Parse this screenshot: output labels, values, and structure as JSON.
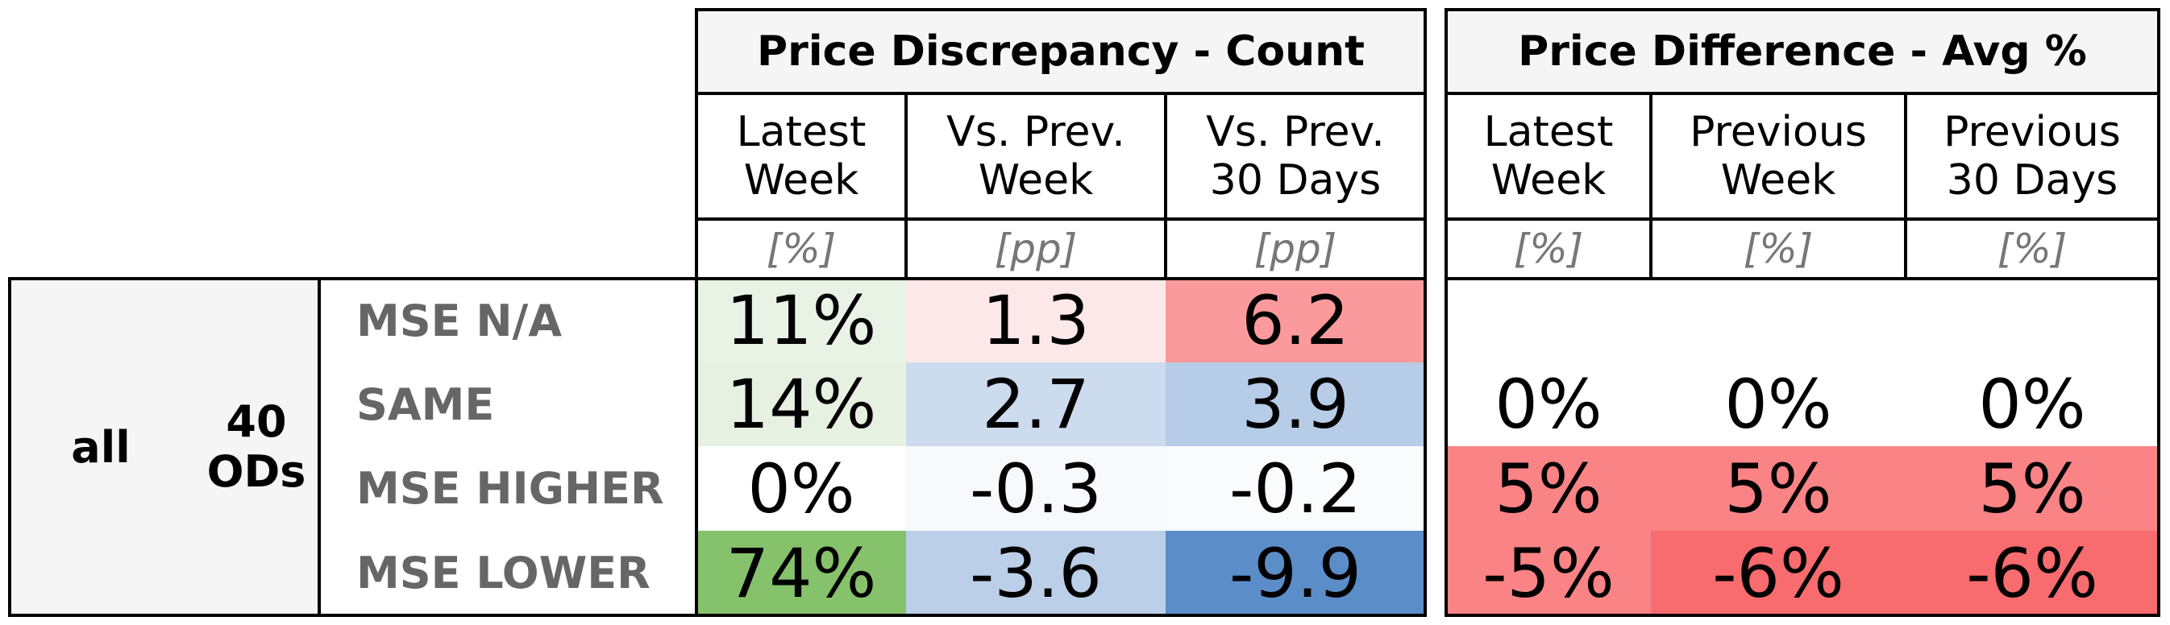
{
  "chart_data": {
    "type": "table",
    "groups": [
      {
        "title": "Price Discrepancy - Count",
        "columns": [
          {
            "label": "Latest\nWeek",
            "unit": "[%]"
          },
          {
            "label": "Vs. Prev.\nWeek",
            "unit": "[pp]"
          },
          {
            "label": "Vs. Prev.\n30 Days",
            "unit": "[pp]"
          }
        ]
      },
      {
        "title": "Price Difference - Avg %",
        "columns": [
          {
            "label": "Latest\nWeek",
            "unit": "[%]"
          },
          {
            "label": "Previous\nWeek",
            "unit": "[%]"
          },
          {
            "label": "Previous\n30 Days",
            "unit": "[%]"
          }
        ]
      }
    ],
    "side_labels": {
      "segment": "all",
      "count": "40\nODs"
    },
    "rows": [
      {
        "label": "MSE N/A",
        "cells": [
          {
            "text": "11%",
            "color": "#e8f3e5"
          },
          {
            "text": "1.3",
            "color": "#fde8e9"
          },
          {
            "text": "6.2",
            "color": "#fb9a9c"
          },
          {
            "text": "",
            "color": "#ffffff"
          },
          {
            "text": "",
            "color": "#ffffff"
          },
          {
            "text": "",
            "color": "#ffffff"
          }
        ]
      },
      {
        "label": "SAME",
        "cells": [
          {
            "text": "14%",
            "color": "#e6f1e2"
          },
          {
            "text": "2.7",
            "color": "#ccdbed"
          },
          {
            "text": "3.9",
            "color": "#b7cce7"
          },
          {
            "text": "0%",
            "color": "#ffffff"
          },
          {
            "text": "0%",
            "color": "#ffffff"
          },
          {
            "text": "0%",
            "color": "#ffffff"
          }
        ]
      },
      {
        "label": "MSE HIGHER",
        "cells": [
          {
            "text": "0%",
            "color": "#ffffff"
          },
          {
            "text": "-0.3",
            "color": "#f7f9fc"
          },
          {
            "text": "-0.2",
            "color": "#fafbfd"
          },
          {
            "text": "5%",
            "color": "#f98385"
          },
          {
            "text": "5%",
            "color": "#f98385"
          },
          {
            "text": "5%",
            "color": "#f98385"
          }
        ]
      },
      {
        "label": "MSE LOWER",
        "cells": [
          {
            "text": "74%",
            "color": "#86c26c"
          },
          {
            "text": "-3.6",
            "color": "#bccfe9"
          },
          {
            "text": "-9.9",
            "color": "#5b8dc9"
          },
          {
            "text": "-5%",
            "color": "#f98385"
          },
          {
            "text": "-6%",
            "color": "#f86b6e"
          },
          {
            "text": "-6%",
            "color": "#f86b6e"
          }
        ]
      }
    ]
  }
}
